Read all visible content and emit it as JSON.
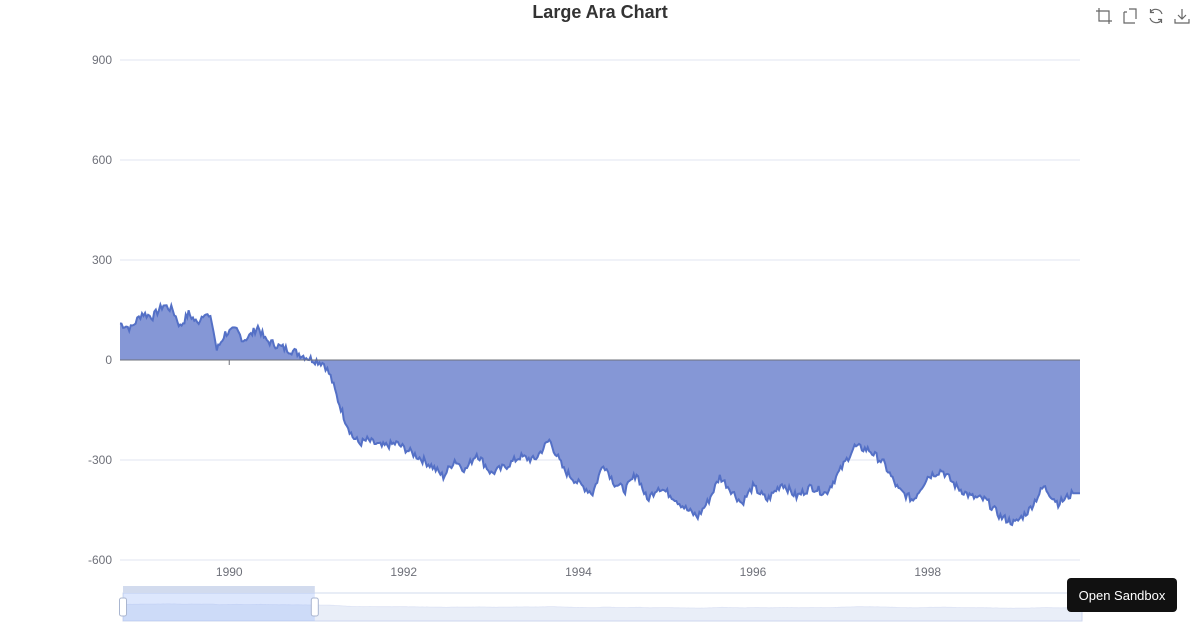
{
  "chart_data": {
    "type": "area",
    "title": "Large Ara Chart",
    "xlabel": "",
    "ylabel": "",
    "ylim": [
      -600,
      900
    ],
    "yticks": [
      "900",
      "600",
      "300",
      "0",
      "-300",
      "-600"
    ],
    "xticks": [
      "1990",
      "1992",
      "1994",
      "1996",
      "1998"
    ],
    "xlim": [
      "1988-10-01",
      "1999-09-30"
    ],
    "grid": true,
    "colors": {
      "area": "#8597d6",
      "line": "#5470c6",
      "grid": "#e0e6f1",
      "axis": "#6e7079"
    },
    "series": [
      {
        "points": [
          [
            "1988-10-01",
            110
          ],
          [
            "1988-11-15",
            95
          ],
          [
            "1989-01-01",
            140
          ],
          [
            "1989-02-15",
            130
          ],
          [
            "1989-04-01",
            165
          ],
          [
            "1989-05-10",
            150
          ],
          [
            "1989-06-10",
            100
          ],
          [
            "1989-07-15",
            140
          ],
          [
            "1989-08-20",
            110
          ],
          [
            "1989-09-20",
            145
          ],
          [
            "1989-10-20",
            115
          ],
          [
            "1989-11-10",
            30
          ],
          [
            "1989-12-15",
            80
          ],
          [
            "1990-02-01",
            90
          ],
          [
            "1990-03-01",
            60
          ],
          [
            "1990-04-01",
            75
          ],
          [
            "1990-05-01",
            100
          ],
          [
            "1990-06-01",
            60
          ],
          [
            "1990-08-01",
            40
          ],
          [
            "1990-10-01",
            25
          ],
          [
            "1990-12-01",
            5
          ],
          [
            "1991-02-01",
            -10
          ],
          [
            "1991-03-01",
            -50
          ],
          [
            "1991-04-01",
            -120
          ],
          [
            "1991-05-01",
            -180
          ],
          [
            "1991-06-01",
            -230
          ],
          [
            "1991-07-01",
            -250
          ],
          [
            "1991-08-01",
            -240
          ],
          [
            "1991-10-01",
            -260
          ],
          [
            "1991-12-01",
            -250
          ],
          [
            "1992-01-15",
            -270
          ],
          [
            "1992-03-01",
            -290
          ],
          [
            "1992-05-01",
            -320
          ],
          [
            "1992-06-15",
            -350
          ],
          [
            "1992-08-01",
            -300
          ],
          [
            "1992-09-15",
            -330
          ],
          [
            "1992-11-01",
            -280
          ],
          [
            "1993-01-01",
            -340
          ],
          [
            "1993-03-01",
            -320
          ],
          [
            "1993-05-01",
            -290
          ],
          [
            "1993-07-01",
            -300
          ],
          [
            "1993-09-01",
            -240
          ],
          [
            "1993-11-01",
            -330
          ],
          [
            "1994-01-01",
            -370
          ],
          [
            "1994-03-01",
            -400
          ],
          [
            "1994-04-15",
            -310
          ],
          [
            "1994-06-01",
            -370
          ],
          [
            "1994-07-15",
            -390
          ],
          [
            "1994-09-01",
            -340
          ],
          [
            "1994-10-15",
            -420
          ],
          [
            "1994-12-01",
            -380
          ],
          [
            "1995-02-01",
            -410
          ],
          [
            "1995-04-01",
            -450
          ],
          [
            "1995-05-15",
            -470
          ],
          [
            "1995-07-01",
            -420
          ],
          [
            "1995-08-15",
            -350
          ],
          [
            "1995-10-01",
            -390
          ],
          [
            "1995-11-15",
            -430
          ],
          [
            "1996-01-01",
            -380
          ],
          [
            "1996-03-01",
            -420
          ],
          [
            "1996-05-01",
            -370
          ],
          [
            "1996-07-01",
            -410
          ],
          [
            "1996-09-01",
            -380
          ],
          [
            "1996-11-01",
            -400
          ],
          [
            "1997-01-01",
            -330
          ],
          [
            "1997-03-01",
            -260
          ],
          [
            "1997-05-01",
            -270
          ],
          [
            "1997-07-01",
            -310
          ],
          [
            "1997-09-01",
            -390
          ],
          [
            "1997-11-01",
            -420
          ],
          [
            "1998-01-01",
            -350
          ],
          [
            "1998-03-01",
            -330
          ],
          [
            "1998-05-01",
            -380
          ],
          [
            "1998-07-01",
            -410
          ],
          [
            "1998-09-01",
            -420
          ],
          [
            "1998-11-01",
            -470
          ],
          [
            "1999-01-01",
            -490
          ],
          [
            "1999-03-01",
            -450
          ],
          [
            "1999-05-01",
            -380
          ],
          [
            "1999-07-01",
            -430
          ],
          [
            "1999-09-01",
            -400
          ]
        ]
      }
    ],
    "dataZoom": {
      "start_percent": 0,
      "end_percent": 20
    }
  },
  "toolbox": {
    "icons": [
      "zoom-icon",
      "zoom-reset-icon",
      "restore-icon",
      "download-icon"
    ]
  },
  "sandbox_label": "Open Sandbox"
}
